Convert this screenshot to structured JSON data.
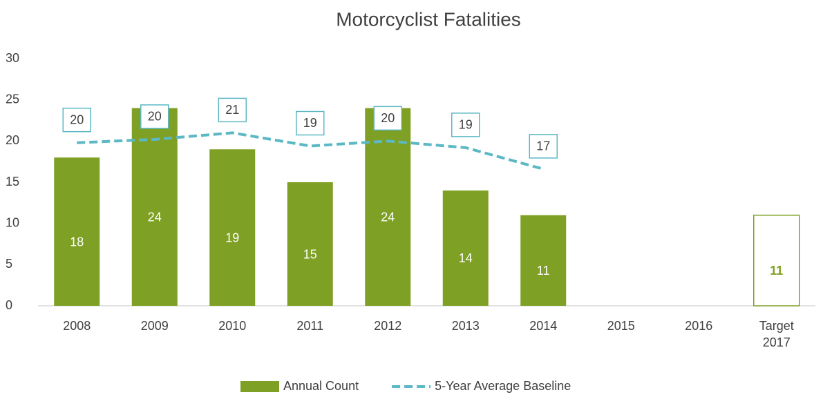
{
  "chart_data": {
    "type": "bar-line",
    "title": "Motorcyclist Fatalities",
    "categories": [
      "2008",
      "2009",
      "2010",
      "2011",
      "2012",
      "2013",
      "2014",
      "2015",
      "2016",
      "Target 2017"
    ],
    "series": [
      {
        "name": "Annual Count",
        "type": "bar",
        "color": "#7ea024",
        "values": [
          18,
          24,
          19,
          15,
          24,
          14,
          11,
          null,
          null,
          null
        ]
      },
      {
        "name": "5-Year Average Baseline",
        "type": "line",
        "color": "#5bb8c4",
        "dashed": true,
        "values": [
          19.8,
          20.2,
          21,
          19.4,
          20,
          19.2,
          16.6,
          null,
          null,
          null
        ],
        "value_labels": [
          "20",
          "20",
          "21",
          "19",
          "20",
          "19",
          "17",
          null,
          null,
          null
        ]
      }
    ],
    "target": {
      "value": 11,
      "color": "#7ea024"
    },
    "ylim": [
      0,
      30
    ],
    "yticks": [
      0,
      5,
      10,
      15,
      20,
      25,
      30
    ],
    "grid": false,
    "legend": "bottom"
  }
}
